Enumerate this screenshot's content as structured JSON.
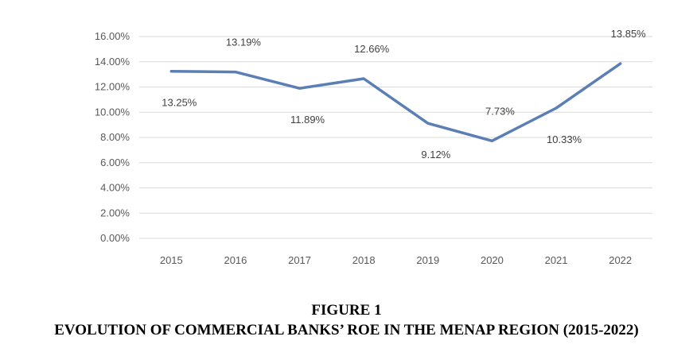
{
  "figure": {
    "number": "FIGURE 1",
    "title": "EVOLUTION OF COMMERCIAL BANKS’ ROE IN THE MENAP REGION (2015-2022)"
  },
  "chart_data": {
    "type": "line",
    "title": "",
    "xlabel": "",
    "ylabel": "",
    "categories": [
      "2015",
      "2016",
      "2017",
      "2018",
      "2019",
      "2020",
      "2021",
      "2022"
    ],
    "series": [
      {
        "values": [
          13.25,
          13.19,
          11.89,
          12.66,
          9.12,
          7.73,
          10.33,
          13.85
        ],
        "labels": [
          "13.25%",
          "13.19%",
          "11.89%",
          "12.66%",
          "9.12%",
          "7.73%",
          "10.33%",
          "13.85%"
        ],
        "label_side": [
          "below",
          "above",
          "below",
          "above",
          "below",
          "above",
          "below",
          "above"
        ],
        "color": "#5b7fb5"
      }
    ],
    "ylim": [
      0,
      16
    ],
    "yticks": [
      "0.00%",
      "2.00%",
      "4.00%",
      "6.00%",
      "8.00%",
      "10.00%",
      "12.00%",
      "14.00%",
      "16.00%"
    ],
    "grid": true,
    "gridline_color": "#d9d9d9",
    "legend": "none"
  }
}
